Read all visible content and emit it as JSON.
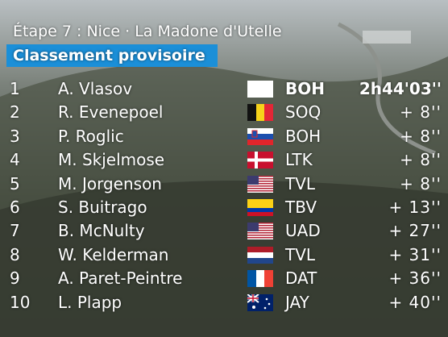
{
  "header": {
    "title": "Étape 7 : Nice · La Madone d'Utelle",
    "subtitle": "Classement provisoire"
  },
  "table": {
    "rows": [
      {
        "rank": 1,
        "name": "A. Vlasov",
        "team": "BOH",
        "time": "2h44'03''"
      },
      {
        "rank": 2,
        "name": "R. Evenepoel",
        "team": "SOQ",
        "time": "+ 8''"
      },
      {
        "rank": 3,
        "name": "P. Roglic",
        "team": "BOH",
        "time": "+ 8''"
      },
      {
        "rank": 4,
        "name": "M. Skjelmose",
        "team": "LTK",
        "time": "+ 8''"
      },
      {
        "rank": 5,
        "name": "M. Jorgenson",
        "team": "TVL",
        "time": "+ 8''"
      },
      {
        "rank": 6,
        "name": "S. Buitrago",
        "team": "TBV",
        "time": "+ 13''"
      },
      {
        "rank": 7,
        "name": "B. McNulty",
        "team": "UAD",
        "time": "+ 27''"
      },
      {
        "rank": 8,
        "name": "W. Kelderman",
        "team": "TVL",
        "time": "+ 31''"
      },
      {
        "rank": 9,
        "name": "A. Paret-Peintre",
        "team": "DAT",
        "time": "+ 36''"
      },
      {
        "rank": 10,
        "name": "L. Plapp",
        "team": "JAY",
        "time": "+ 40''"
      }
    ]
  }
}
